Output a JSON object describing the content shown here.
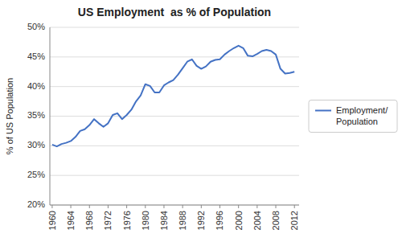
{
  "chart_data": {
    "type": "line",
    "title": "US Employment  as % of Population",
    "y_label": "% of US Population",
    "x": [
      1960,
      1961,
      1962,
      1963,
      1964,
      1965,
      1966,
      1967,
      1968,
      1969,
      1970,
      1971,
      1972,
      1973,
      1974,
      1975,
      1976,
      1977,
      1978,
      1979,
      1980,
      1981,
      1982,
      1983,
      1984,
      1985,
      1986,
      1987,
      1988,
      1989,
      1990,
      1991,
      1992,
      1993,
      1994,
      1995,
      1996,
      1997,
      1998,
      1999,
      2000,
      2001,
      2002,
      2003,
      2004,
      2005,
      2006,
      2007,
      2008,
      2009,
      2010,
      2011,
      2012
    ],
    "series": [
      {
        "name": "Employment/\nPopulation",
        "color": "#4472C4",
        "values": [
          30.2,
          29.9,
          30.3,
          30.5,
          30.8,
          31.5,
          32.5,
          32.8,
          33.5,
          34.5,
          33.8,
          33.2,
          33.8,
          35.2,
          35.5,
          34.5,
          35.2,
          36.1,
          37.5,
          38.5,
          40.4,
          40.1,
          39.0,
          39.0,
          40.2,
          40.7,
          41.1,
          42.0,
          43.1,
          44.2,
          44.6,
          43.5,
          43.0,
          43.4,
          44.2,
          44.5,
          44.6,
          45.4,
          46.0,
          46.5,
          46.9,
          46.5,
          45.2,
          45.1,
          45.5,
          46.0,
          46.2,
          46.0,
          45.4,
          43.0,
          42.2,
          42.3,
          42.5
        ]
      }
    ],
    "xlim": [
      1959.5,
      2013
    ],
    "ylim": [
      20,
      50
    ],
    "xticks": [
      1960,
      1964,
      1968,
      1972,
      1976,
      1980,
      1984,
      1988,
      1992,
      1996,
      2000,
      2004,
      2008,
      2012
    ],
    "yticks": [
      {
        "value": 20,
        "label": "20%"
      },
      {
        "value": 25,
        "label": "25%"
      },
      {
        "value": 30,
        "label": "30%"
      },
      {
        "value": 35,
        "label": "35%"
      },
      {
        "value": 40,
        "label": "40%"
      },
      {
        "value": 45,
        "label": "45%"
      },
      {
        "value": 50,
        "label": "50%"
      }
    ],
    "grid": true,
    "legend": "right"
  }
}
